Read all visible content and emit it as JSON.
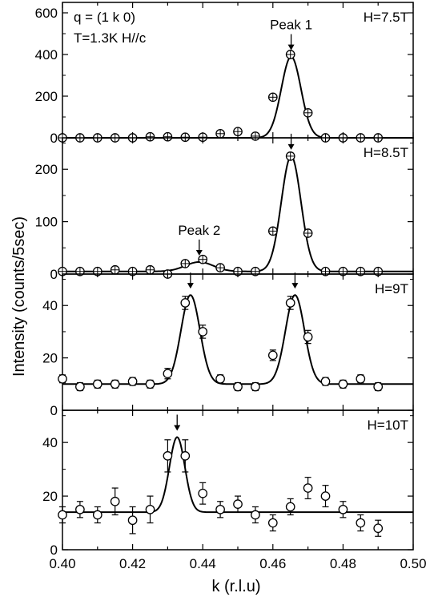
{
  "figure": {
    "ylabel": "Intensity (counts/5sec)",
    "xlabel": "k (r.l.u)"
  },
  "chart_data": {
    "type": "scatter",
    "xlim": [
      0.4,
      0.5
    ],
    "xticks": [
      "0.40",
      "0.42",
      "0.44",
      "0.46",
      "0.48",
      "0.50"
    ],
    "panels": [
      {
        "field_label": "H=7.5T",
        "info_lines": [
          "q = (1 k 0)",
          "T=1.3K  H//c"
        ],
        "ylim": [
          0,
          650
        ],
        "yticks": [
          0,
          200,
          400,
          600
        ],
        "marker": "crossed-circle",
        "points": {
          "x": [
            0.4,
            0.405,
            0.41,
            0.415,
            0.42,
            0.425,
            0.43,
            0.435,
            0.44,
            0.445,
            0.45,
            0.455,
            0.46,
            0.465,
            0.47,
            0.475,
            0.48,
            0.485,
            0.49
          ],
          "y": [
            0,
            0,
            0,
            0,
            0,
            5,
            5,
            3,
            3,
            20,
            30,
            8,
            195,
            400,
            120,
            0,
            0,
            0,
            0
          ],
          "err": [
            10,
            10,
            10,
            10,
            10,
            10,
            10,
            10,
            10,
            10,
            10,
            10,
            12,
            12,
            10,
            10,
            10,
            10,
            10
          ]
        },
        "fit": {
          "baseline": 0,
          "peaks": [
            {
              "center": 0.4652,
              "amplitude": 390,
              "sigma": 0.0028
            }
          ]
        },
        "peak_annotations": [
          {
            "x": 0.4652,
            "label": "Peak 1"
          }
        ]
      },
      {
        "field_label": "H=8.5T",
        "ylim": [
          0,
          260
        ],
        "yticks": [
          0,
          100,
          200
        ],
        "marker": "crossed-circle",
        "points": {
          "x": [
            0.4,
            0.405,
            0.41,
            0.415,
            0.42,
            0.425,
            0.43,
            0.435,
            0.44,
            0.445,
            0.45,
            0.455,
            0.46,
            0.465,
            0.47,
            0.475,
            0.48,
            0.485,
            0.49
          ],
          "y": [
            5,
            5,
            5,
            8,
            5,
            8,
            0,
            20,
            28,
            12,
            5,
            5,
            82,
            225,
            78,
            5,
            5,
            5,
            5
          ],
          "err": [
            5,
            5,
            5,
            5,
            5,
            5,
            5,
            5,
            5,
            5,
            5,
            5,
            6,
            6,
            6,
            5,
            5,
            5,
            5
          ]
        },
        "fit": {
          "baseline": 5,
          "peaks": [
            {
              "center": 0.439,
              "amplitude": 18,
              "sigma": 0.004
            },
            {
              "center": 0.4652,
              "amplitude": 220,
              "sigma": 0.0028
            }
          ]
        },
        "peak_annotations": [
          {
            "x": 0.4652,
            "label": ""
          },
          {
            "x": 0.439,
            "label": "Peak 2"
          }
        ]
      },
      {
        "field_label": "H=9T",
        "ylim": [
          0,
          52
        ],
        "yticks": [
          0,
          20,
          40
        ],
        "marker": "open-circle",
        "points": {
          "x": [
            0.4,
            0.405,
            0.41,
            0.415,
            0.42,
            0.425,
            0.43,
            0.435,
            0.44,
            0.445,
            0.45,
            0.455,
            0.46,
            0.465,
            0.47,
            0.475,
            0.48,
            0.485,
            0.49
          ],
          "y": [
            12,
            9,
            10,
            10,
            11,
            10,
            14,
            41,
            30,
            12,
            9,
            9,
            21,
            41,
            28,
            11,
            10,
            12,
            9
          ],
          "err": [
            1.5,
            1.5,
            1.5,
            1.5,
            1.5,
            1.5,
            2,
            2.5,
            2.5,
            1.5,
            1.5,
            1.5,
            2,
            2.5,
            2.5,
            1.5,
            1.5,
            1.5,
            1.5
          ]
        },
        "fit": {
          "baseline": 10,
          "peaks": [
            {
              "center": 0.4365,
              "amplitude": 34,
              "sigma": 0.0027
            },
            {
              "center": 0.4663,
              "amplitude": 34,
              "sigma": 0.0027
            }
          ]
        },
        "peak_annotations": [
          {
            "x": 0.4365,
            "label": ""
          },
          {
            "x": 0.4663,
            "label": ""
          }
        ]
      },
      {
        "field_label": "H=10T",
        "ylim": [
          0,
          52
        ],
        "yticks": [
          0,
          20,
          40
        ],
        "marker": "open-circle",
        "points": {
          "x": [
            0.4,
            0.405,
            0.41,
            0.415,
            0.42,
            0.425,
            0.43,
            0.435,
            0.44,
            0.445,
            0.45,
            0.455,
            0.46,
            0.465,
            0.47,
            0.475,
            0.48,
            0.485,
            0.49
          ],
          "y": [
            13,
            15,
            13,
            18,
            11,
            15,
            35,
            35,
            21,
            15,
            17,
            13,
            10,
            16,
            23,
            20,
            15,
            10,
            8
          ],
          "err": [
            3,
            3,
            3,
            5,
            5,
            5,
            6,
            6,
            4,
            3,
            3,
            3,
            3,
            3,
            4,
            4,
            3,
            3,
            3
          ]
        },
        "fit": {
          "baseline": 14,
          "peaks": [
            {
              "center": 0.4327,
              "amplitude": 28,
              "sigma": 0.0022
            }
          ]
        },
        "peak_annotations": [
          {
            "x": 0.4327,
            "label": ""
          }
        ]
      }
    ]
  }
}
